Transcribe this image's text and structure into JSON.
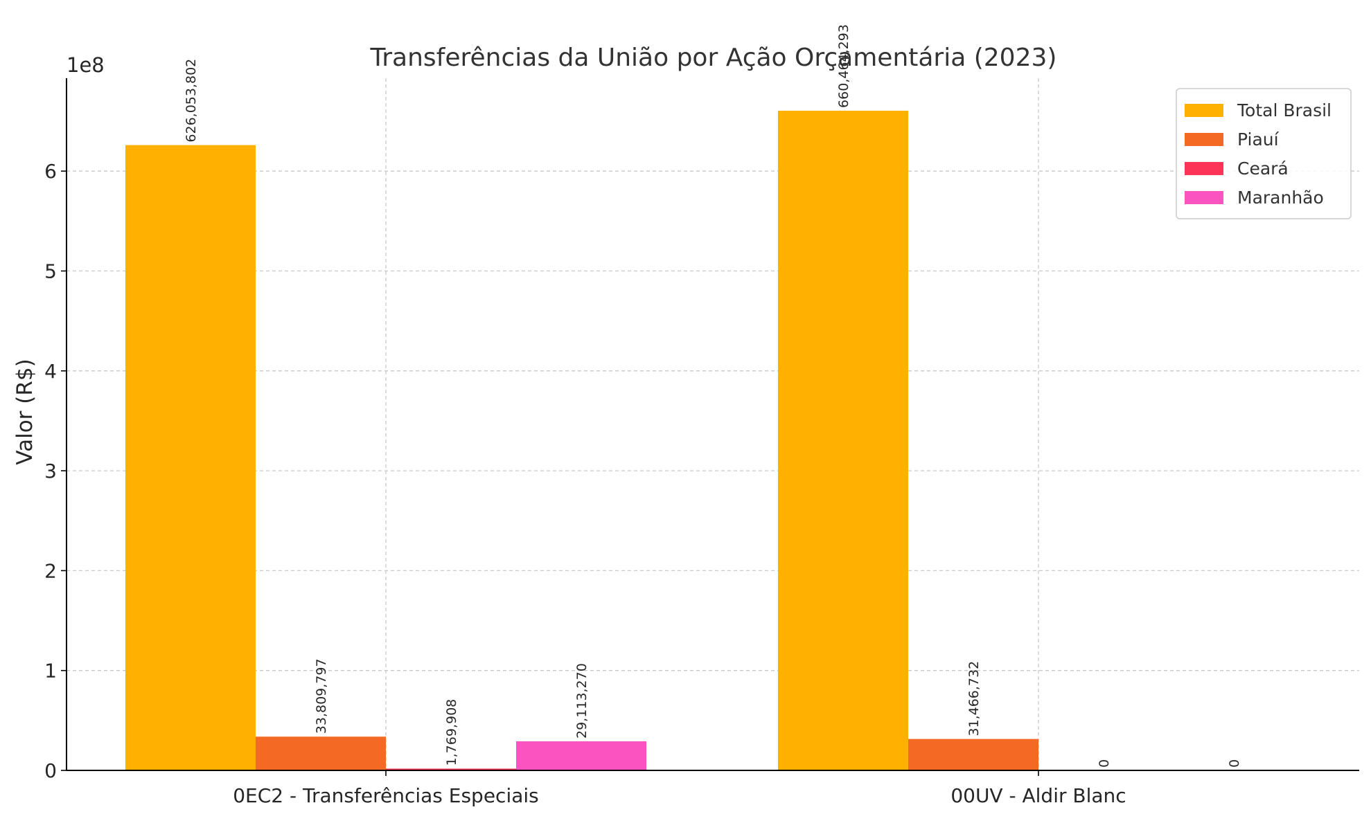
{
  "chart_data": {
    "type": "bar",
    "title": "Transferências da União por Ação Orçamentária (2023)",
    "xlabel": "",
    "ylabel": "Valor (R$)",
    "y_offset_label": "1e8",
    "ylim": [
      0,
      693000000
    ],
    "yticks": [
      0,
      100000000,
      200000000,
      300000000,
      400000000,
      500000000,
      600000000
    ],
    "ytick_labels": [
      "0",
      "1",
      "2",
      "3",
      "4",
      "5",
      "6"
    ],
    "grid": true,
    "legend_position": "top-right",
    "categories": [
      "0EC2 - Transferências Especiais",
      "00UV - Aldir Blanc"
    ],
    "series": [
      {
        "name": "Total Brasil",
        "color": "#FFB000",
        "values": [
          626053802,
          660464293
        ],
        "labels": [
          "626,053,802",
          "660,464,293"
        ]
      },
      {
        "name": "Piauí",
        "color": "#F46A25",
        "values": [
          33809797,
          31466732
        ],
        "labels": [
          "33,809,797",
          "31,466,732"
        ]
      },
      {
        "name": "Ceará",
        "color": "#FC3558",
        "values": [
          1769908,
          0
        ],
        "labels": [
          "1,769,908",
          "0"
        ]
      },
      {
        "name": "Maranhão",
        "color": "#FB54C1",
        "values": [
          29113270,
          0
        ],
        "labels": [
          "29,113,270",
          "0"
        ]
      }
    ]
  }
}
